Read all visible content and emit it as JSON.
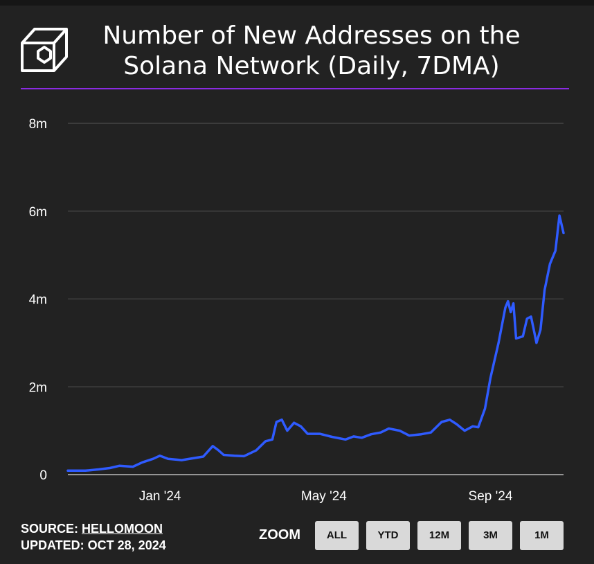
{
  "title": "Number of New Addresses on the Solana Network (Daily, 7DMA)",
  "footer": {
    "source_label": "SOURCE:",
    "source_name": "HELLOMOON",
    "updated": "UPDATED: OCT 28, 2024"
  },
  "zoom": {
    "label": "ZOOM",
    "buttons": [
      "ALL",
      "YTD",
      "12M",
      "3M",
      "1M"
    ]
  },
  "colors": {
    "background": "#222222",
    "line": "#2f5bff",
    "title_rule": "#8a2be2",
    "grid": "#555555",
    "button_bg": "#d9d9d9"
  },
  "chart_data": {
    "type": "line",
    "title": "Number of New Addresses on the Solana Network (Daily, 7DMA)",
    "xlabel": "",
    "ylabel": "",
    "x_ticks": [
      "Jan '24",
      "May '24",
      "Sep '24"
    ],
    "y_ticks": [
      "0",
      "2m",
      "4m",
      "6m",
      "8m"
    ],
    "ylim": [
      0,
      8000000
    ],
    "xlim": [
      "2023-10-28",
      "2024-10-28"
    ],
    "grid": true,
    "legend": "none",
    "series": [
      {
        "values": [
          [
            "2023-10-28",
            90000
          ],
          [
            "2023-11-10",
            90000
          ],
          [
            "2023-11-20",
            120000
          ],
          [
            "2023-11-28",
            150000
          ],
          [
            "2023-12-05",
            200000
          ],
          [
            "2023-12-15",
            180000
          ],
          [
            "2023-12-22",
            280000
          ],
          [
            "2023-12-30",
            360000
          ],
          [
            "2024-01-04",
            430000
          ],
          [
            "2024-01-10",
            360000
          ],
          [
            "2024-01-20",
            330000
          ],
          [
            "2024-01-30",
            380000
          ],
          [
            "2024-02-05",
            410000
          ],
          [
            "2024-02-12",
            650000
          ],
          [
            "2024-02-16",
            560000
          ],
          [
            "2024-02-20",
            450000
          ],
          [
            "2024-02-28",
            430000
          ],
          [
            "2024-03-06",
            420000
          ],
          [
            "2024-03-15",
            550000
          ],
          [
            "2024-03-22",
            760000
          ],
          [
            "2024-03-27",
            800000
          ],
          [
            "2024-03-30",
            1200000
          ],
          [
            "2024-04-03",
            1250000
          ],
          [
            "2024-04-07",
            1000000
          ],
          [
            "2024-04-12",
            1180000
          ],
          [
            "2024-04-17",
            1100000
          ],
          [
            "2024-04-22",
            930000
          ],
          [
            "2024-05-01",
            930000
          ],
          [
            "2024-05-10",
            860000
          ],
          [
            "2024-05-20",
            800000
          ],
          [
            "2024-05-26",
            870000
          ],
          [
            "2024-06-01",
            840000
          ],
          [
            "2024-06-08",
            920000
          ],
          [
            "2024-06-15",
            960000
          ],
          [
            "2024-06-21",
            1050000
          ],
          [
            "2024-06-29",
            1000000
          ],
          [
            "2024-07-06",
            890000
          ],
          [
            "2024-07-15",
            920000
          ],
          [
            "2024-07-22",
            960000
          ],
          [
            "2024-07-30",
            1200000
          ],
          [
            "2024-08-05",
            1250000
          ],
          [
            "2024-08-10",
            1150000
          ],
          [
            "2024-08-16",
            1000000
          ],
          [
            "2024-08-22",
            1100000
          ],
          [
            "2024-08-26",
            1080000
          ],
          [
            "2024-08-31",
            1500000
          ],
          [
            "2024-09-04",
            2200000
          ],
          [
            "2024-09-10",
            3000000
          ],
          [
            "2024-09-15",
            3800000
          ],
          [
            "2024-09-17",
            3950000
          ],
          [
            "2024-09-19",
            3700000
          ],
          [
            "2024-09-21",
            3900000
          ],
          [
            "2024-09-23",
            3100000
          ],
          [
            "2024-09-28",
            3150000
          ],
          [
            "2024-10-01",
            3550000
          ],
          [
            "2024-10-04",
            3600000
          ],
          [
            "2024-10-06",
            3300000
          ],
          [
            "2024-10-08",
            3000000
          ],
          [
            "2024-10-11",
            3300000
          ],
          [
            "2024-10-14",
            4200000
          ],
          [
            "2024-10-18",
            4800000
          ],
          [
            "2024-10-22",
            5100000
          ],
          [
            "2024-10-25",
            5900000
          ],
          [
            "2024-10-28",
            5500000
          ]
        ]
      }
    ]
  }
}
